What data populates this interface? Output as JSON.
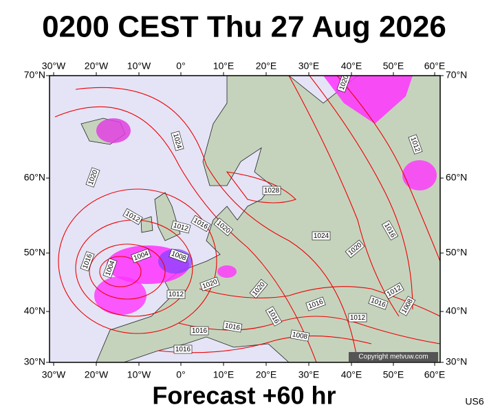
{
  "header": {
    "title": "0200 CEST Thu 27 Aug 2026"
  },
  "axes": {
    "longitudes": [
      "30°W",
      "20°W",
      "10°W",
      "0°",
      "10°E",
      "20°E",
      "30°E",
      "40°E",
      "50°E",
      "60°E"
    ],
    "latitudes": [
      "70°N",
      "60°N",
      "50°N",
      "40°N",
      "30°N"
    ]
  },
  "isobar_labels": [
    "1024",
    "1020",
    "1012",
    "1012",
    "1016",
    "1020",
    "1028",
    "1024",
    "1020",
    "1016",
    "1012",
    "1016",
    "1004",
    "1004",
    "1008",
    "1012",
    "1020",
    "1020",
    "1016",
    "1016",
    "1012",
    "1008",
    "1012",
    "1016",
    "1008",
    "1016",
    "1016",
    "1016",
    "1020"
  ],
  "footer": {
    "forecast": "Forecast +60 hr",
    "copyright": "Copyright metvuw.com",
    "model": "US6"
  }
}
